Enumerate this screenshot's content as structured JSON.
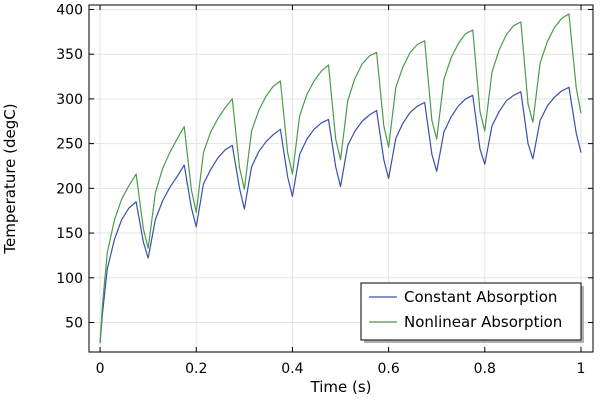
{
  "chart_data": {
    "type": "line",
    "title": "",
    "xlabel": "Time (s)",
    "ylabel": "Temperature (degC)",
    "xlim": [
      -0.023,
      1.025
    ],
    "ylim": [
      17,
      405
    ],
    "xticks": [
      0,
      0.2,
      0.4,
      0.6,
      0.8,
      1
    ],
    "xtick_labels": [
      "0",
      "0.2",
      "0.4",
      "0.6",
      "0.8",
      "1"
    ],
    "yticks": [
      50,
      100,
      150,
      200,
      250,
      300,
      350,
      400
    ],
    "ytick_labels": [
      "50",
      "100",
      "150",
      "200",
      "250",
      "300",
      "350",
      "400"
    ],
    "grid": true,
    "legend_position": "bottom-right",
    "series": [
      {
        "name": "Constant Absorption",
        "color": "#3a4fae",
        "x": [
          0,
          0.005,
          0.015,
          0.03,
          0.045,
          0.06,
          0.075,
          0.09,
          0.1,
          0.115,
          0.13,
          0.145,
          0.16,
          0.175,
          0.19,
          0.2,
          0.215,
          0.23,
          0.245,
          0.26,
          0.275,
          0.29,
          0.3,
          0.315,
          0.33,
          0.345,
          0.36,
          0.375,
          0.39,
          0.4,
          0.415,
          0.43,
          0.445,
          0.46,
          0.475,
          0.49,
          0.5,
          0.515,
          0.53,
          0.545,
          0.56,
          0.575,
          0.59,
          0.6,
          0.615,
          0.63,
          0.645,
          0.66,
          0.675,
          0.69,
          0.7,
          0.715,
          0.73,
          0.745,
          0.76,
          0.775,
          0.79,
          0.8,
          0.815,
          0.83,
          0.845,
          0.86,
          0.875,
          0.89,
          0.9,
          0.915,
          0.93,
          0.945,
          0.96,
          0.975,
          0.99,
          1
        ],
        "y": [
          27,
          60,
          110,
          143,
          165,
          178,
          185,
          140,
          122,
          165,
          186,
          201,
          213,
          226,
          178,
          157,
          205,
          221,
          234,
          243,
          248,
          200,
          177,
          224,
          241,
          252,
          260,
          266,
          213,
          191,
          238,
          255,
          266,
          273,
          277,
          224,
          202,
          248,
          264,
          275,
          282,
          287,
          232,
          211,
          256,
          273,
          285,
          292,
          296,
          238,
          219,
          263,
          280,
          292,
          300,
          304,
          244,
          227,
          270,
          286,
          298,
          304,
          308,
          250,
          233,
          276,
          292,
          302,
          309,
          313,
          262,
          240
        ]
      },
      {
        "name": "Nonlinear Absorption",
        "color": "#4a9b4a",
        "x": [
          0,
          0.005,
          0.015,
          0.03,
          0.045,
          0.06,
          0.075,
          0.09,
          0.1,
          0.115,
          0.13,
          0.145,
          0.16,
          0.175,
          0.19,
          0.2,
          0.215,
          0.23,
          0.245,
          0.26,
          0.275,
          0.29,
          0.3,
          0.315,
          0.33,
          0.345,
          0.36,
          0.375,
          0.39,
          0.4,
          0.415,
          0.43,
          0.445,
          0.46,
          0.475,
          0.49,
          0.5,
          0.515,
          0.53,
          0.545,
          0.56,
          0.575,
          0.59,
          0.6,
          0.615,
          0.63,
          0.645,
          0.66,
          0.675,
          0.69,
          0.7,
          0.715,
          0.73,
          0.745,
          0.76,
          0.775,
          0.79,
          0.8,
          0.815,
          0.83,
          0.845,
          0.86,
          0.875,
          0.89,
          0.9,
          0.915,
          0.93,
          0.945,
          0.96,
          0.975,
          0.99,
          1
        ],
        "y": [
          27,
          70,
          128,
          165,
          188,
          203,
          216,
          155,
          133,
          195,
          222,
          240,
          255,
          269,
          198,
          173,
          240,
          263,
          278,
          290,
          300,
          223,
          199,
          264,
          287,
          303,
          314,
          320,
          240,
          216,
          281,
          305,
          320,
          331,
          338,
          255,
          232,
          298,
          323,
          339,
          348,
          352,
          270,
          246,
          313,
          336,
          352,
          361,
          365,
          276,
          255,
          322,
          346,
          362,
          373,
          377,
          286,
          264,
          330,
          355,
          372,
          382,
          386,
          294,
          274,
          340,
          364,
          380,
          390,
          395,
          313,
          284
        ]
      }
    ]
  }
}
